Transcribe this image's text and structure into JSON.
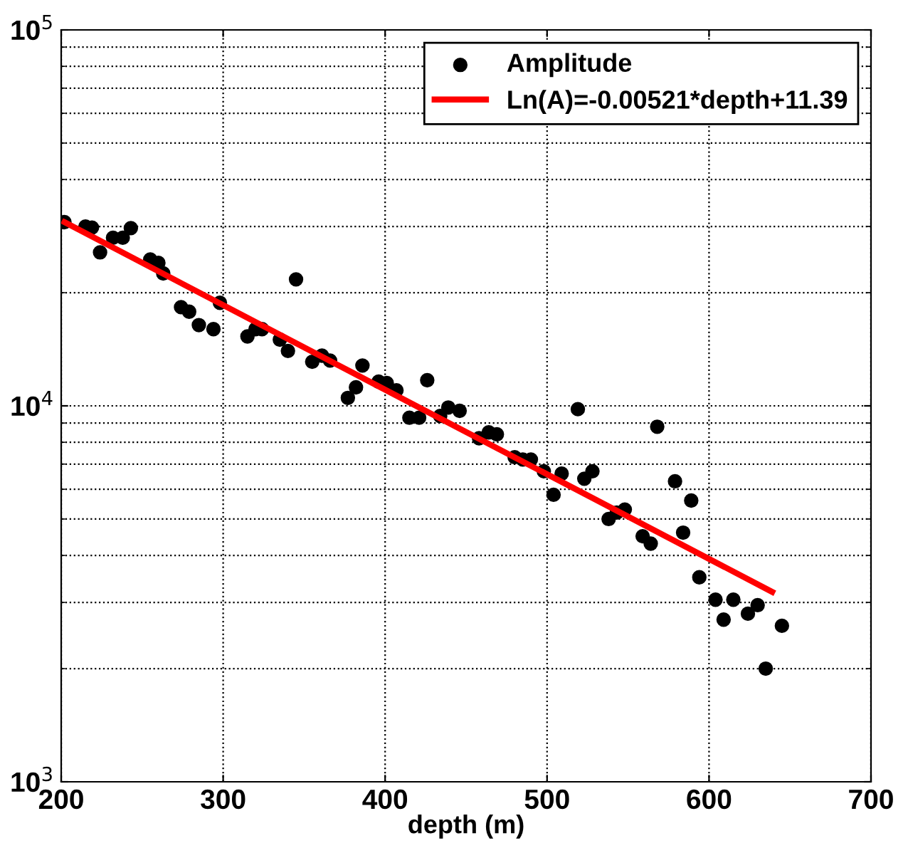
{
  "chart_data": {
    "type": "scatter",
    "xlabel": "depth (m)",
    "log": "y",
    "grid": true,
    "legend": "top right",
    "xlim": [
      200,
      700
    ],
    "xticks": [
      200,
      300,
      400,
      500,
      600,
      700
    ],
    "ylim": [
      1000,
      100000
    ],
    "yticks": [
      {
        "value": 1000,
        "label": "10$^{3}$"
      },
      {
        "value": 10000,
        "label": "10$^{4}$"
      },
      {
        "value": 100000,
        "label": "10$^{5}$"
      }
    ],
    "series": [
      {
        "name": "Amplitude",
        "color": "#000000",
        "marker": "circle",
        "x": [
          202,
          215,
          219,
          224,
          232,
          238,
          243,
          255,
          260,
          263,
          274,
          279,
          285,
          294,
          298,
          315,
          320,
          324,
          335,
          340,
          345,
          355,
          361,
          366,
          377,
          382,
          386,
          396,
          401,
          407,
          415,
          421,
          426,
          434,
          439,
          446,
          458,
          464,
          469,
          480,
          485,
          490,
          498,
          504,
          509,
          519,
          523,
          528,
          538,
          543,
          548,
          559,
          564,
          568,
          579,
          584,
          589,
          594,
          604,
          609,
          615,
          624,
          630,
          635,
          645
        ],
        "values": [
          30800,
          30000,
          29800,
          25600,
          28000,
          28000,
          29700,
          24500,
          24000,
          22500,
          18300,
          17800,
          16400,
          16000,
          18800,
          15300,
          16000,
          16000,
          15000,
          14000,
          21700,
          13100,
          13600,
          13200,
          10500,
          11200,
          12800,
          11600,
          11500,
          11000,
          9300,
          9300,
          11700,
          9400,
          9900,
          9700,
          8200,
          8500,
          8400,
          7300,
          7200,
          7200,
          6700,
          5800,
          6600,
          9800,
          6400,
          6700,
          5000,
          5200,
          5300,
          4500,
          4300,
          8800,
          6300,
          4600,
          5600,
          3500,
          3050,
          2700,
          3050,
          2800,
          2950,
          2000,
          2600
        ]
      },
      {
        "name": "Ln(A)=-0.00521*depth+11.39",
        "type": "line",
        "color": "#ff0000",
        "marker": "none",
        "line_style": "solid",
        "x": [
          202,
          639
        ],
        "values": [
          30800,
          3200
        ]
      }
    ]
  }
}
